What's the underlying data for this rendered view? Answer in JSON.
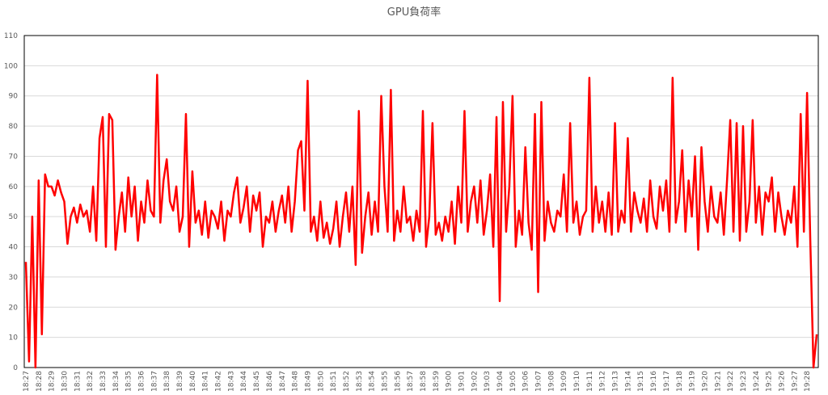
{
  "chart_data": {
    "type": "line",
    "title": "GPU負荷率",
    "color": "#ff0000",
    "grid": true,
    "ylim": [
      0,
      110
    ],
    "yticks": [
      0,
      10,
      20,
      30,
      40,
      50,
      60,
      70,
      80,
      90,
      100,
      110
    ],
    "categories": [
      "18:27",
      null,
      null,
      null,
      "18:28",
      null,
      null,
      null,
      "18:29",
      null,
      null,
      null,
      "18:30",
      null,
      null,
      null,
      "18:31",
      null,
      null,
      null,
      "18:32",
      null,
      null,
      null,
      "18:33",
      null,
      null,
      null,
      "18:34",
      null,
      null,
      null,
      "18:35",
      null,
      null,
      null,
      "18:36",
      null,
      null,
      null,
      "18:37",
      null,
      null,
      null,
      "18:38",
      null,
      null,
      null,
      "18:39",
      null,
      null,
      null,
      "18:40",
      null,
      null,
      null,
      "18:41",
      null,
      null,
      null,
      "18:42",
      null,
      null,
      null,
      "18:43",
      null,
      null,
      null,
      "18:44",
      null,
      null,
      null,
      "18:45",
      null,
      null,
      null,
      "18:46",
      null,
      null,
      null,
      "18:47",
      null,
      null,
      null,
      "18:48",
      null,
      null,
      null,
      "18:49",
      null,
      null,
      null,
      "18:50",
      null,
      null,
      null,
      "18:51",
      null,
      null,
      null,
      "18:52",
      null,
      null,
      null,
      "18:53",
      null,
      null,
      null,
      "18:54",
      null,
      null,
      null,
      "18:55",
      null,
      null,
      null,
      "18:56",
      null,
      null,
      null,
      "18:57",
      null,
      null,
      null,
      "18:58",
      null,
      null,
      null,
      "18:59",
      null,
      null,
      null,
      "19:00",
      null,
      null,
      null,
      "19:01",
      null,
      null,
      null,
      "19:02",
      null,
      null,
      null,
      "19:03",
      null,
      null,
      null,
      "19:04",
      null,
      null,
      null,
      "19:05",
      null,
      null,
      null,
      "19:06",
      null,
      null,
      null,
      "19:07",
      null,
      null,
      null,
      "19:08",
      null,
      null,
      null,
      "19:09",
      null,
      null,
      null,
      "19:10",
      null,
      null,
      null,
      "19:11",
      null,
      null,
      null,
      "19:12",
      null,
      null,
      null,
      "19:13",
      null,
      null,
      null,
      "19:14",
      null,
      null,
      null,
      "19:15",
      null,
      null,
      null,
      "19:16",
      null,
      null,
      null,
      "19:17",
      null,
      null,
      null,
      "19:18",
      null,
      null,
      null,
      "19:19",
      null,
      null,
      null,
      "19:20",
      null,
      null,
      null,
      "19:21",
      null,
      null,
      null,
      "19:22",
      null,
      null,
      null,
      "19:23",
      null,
      null,
      null,
      "19:24",
      null,
      null,
      null,
      "19:25",
      null,
      null,
      null,
      "19:26",
      null,
      null,
      null,
      "19:27",
      null,
      null,
      null,
      "19:28",
      null,
      null,
      null
    ],
    "values": [
      35,
      2,
      50,
      0,
      62,
      11,
      64,
      60,
      60,
      57,
      62,
      58,
      55,
      41,
      50,
      53,
      48,
      54,
      50,
      52,
      45,
      60,
      42,
      76,
      83,
      40,
      84,
      82,
      39,
      50,
      58,
      45,
      63,
      50,
      60,
      42,
      55,
      48,
      62,
      52,
      50,
      97,
      48,
      62,
      69,
      55,
      52,
      60,
      45,
      50,
      84,
      40,
      65,
      48,
      52,
      44,
      55,
      43,
      52,
      50,
      46,
      55,
      42,
      52,
      50,
      58,
      63,
      48,
      53,
      60,
      45,
      57,
      52,
      58,
      40,
      50,
      48,
      55,
      45,
      52,
      57,
      48,
      60,
      45,
      55,
      72,
      75,
      52,
      95,
      45,
      50,
      42,
      55,
      43,
      48,
      41,
      46,
      55,
      40,
      50,
      58,
      45,
      60,
      34,
      85,
      38,
      50,
      58,
      44,
      55,
      45,
      90,
      60,
      45,
      92,
      42,
      52,
      45,
      60,
      48,
      50,
      42,
      52,
      45,
      85,
      40,
      50,
      81,
      44,
      48,
      42,
      50,
      45,
      55,
      41,
      60,
      48,
      85,
      45,
      55,
      60,
      48,
      62,
      44,
      52,
      64,
      40,
      83,
      22,
      88,
      45,
      60,
      90,
      40,
      52,
      44,
      73,
      48,
      39,
      84,
      25,
      88,
      42,
      55,
      48,
      45,
      52,
      50,
      64,
      45,
      81,
      48,
      55,
      44,
      50,
      52,
      96,
      45,
      60,
      48,
      55,
      45,
      58,
      44,
      81,
      45,
      52,
      48,
      76,
      45,
      58,
      52,
      48,
      56,
      45,
      62,
      50,
      46,
      60,
      52,
      62,
      45,
      96,
      48,
      55,
      72,
      45,
      62,
      50,
      70,
      39,
      73,
      55,
      45,
      60,
      50,
      48,
      58,
      44,
      62,
      82,
      45,
      81,
      42,
      80,
      45,
      55,
      82,
      48,
      60,
      44,
      58,
      55,
      63,
      45,
      58,
      50,
      44,
      52,
      48,
      60,
      40,
      84,
      45,
      91,
      42,
      0,
      11
    ]
  }
}
